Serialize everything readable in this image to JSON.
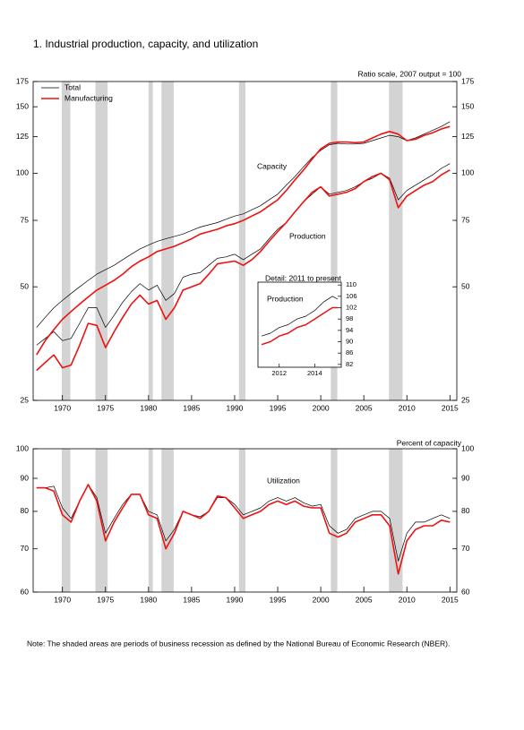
{
  "recessions": [
    [
      1969.92,
      1970.92
    ],
    [
      1973.83,
      1975.25
    ],
    [
      1980.0,
      1980.5
    ],
    [
      1981.5,
      1982.92
    ],
    [
      1990.5,
      1991.25
    ],
    [
      2001.17,
      2001.92
    ],
    [
      2007.92,
      2009.5
    ]
  ],
  "note": "Note: The shaded areas are periods of business recession as defined by the National Bureau of Economic Research (NBER).",
  "chart_data": [
    {
      "type": "line",
      "title": "1.  Industrial production, capacity, and utilization",
      "subtitle": "Ratio scale, 2007 output = 100",
      "log_scale": true,
      "legend": "upper left",
      "annotations": {
        "capacity": "Capacity",
        "production": "Production"
      },
      "xlim": [
        1966.6,
        2015.8
      ],
      "xticks": [
        1970,
        1975,
        1980,
        1985,
        1990,
        1995,
        2000,
        2005,
        2010,
        2015
      ],
      "ylim": [
        25,
        175
      ],
      "yticks": [
        25,
        50,
        75,
        100,
        125,
        150,
        175
      ],
      "x": [
        1967,
        1968,
        1969,
        1970,
        1971,
        1972,
        1973,
        1974,
        1975,
        1976,
        1977,
        1978,
        1979,
        1980,
        1981,
        1982,
        1983,
        1984,
        1985,
        1986,
        1987,
        1988,
        1989,
        1990,
        1991,
        1992,
        1993,
        1994,
        1995,
        1996,
        1997,
        1998,
        1999,
        2000,
        2001,
        2002,
        2003,
        2004,
        2005,
        2006,
        2007,
        2008,
        2009,
        2010,
        2011,
        2012,
        2013,
        2014,
        2015
      ],
      "series": [
        {
          "name": "Total",
          "color": "#000000",
          "capacity": [
            39,
            41.5,
            44,
            46,
            48,
            50,
            52,
            54,
            55.5,
            57,
            59,
            61,
            63,
            64.5,
            66,
            67,
            68,
            69,
            70.5,
            72,
            73,
            74,
            75.5,
            77,
            78,
            80,
            82,
            85,
            88,
            93,
            98,
            104,
            110,
            115,
            119,
            120,
            119.5,
            119.5,
            120,
            122,
            124,
            126,
            125,
            122,
            124,
            127,
            130,
            133,
            137
          ],
          "production": [
            35,
            36.5,
            38,
            36,
            36.5,
            40,
            44,
            44,
            39,
            42,
            45.5,
            48.5,
            51,
            49,
            50.5,
            46,
            48,
            53,
            54,
            54.5,
            57,
            59.5,
            60,
            61,
            59,
            61,
            63,
            67,
            71,
            74,
            79,
            84,
            88,
            92,
            88,
            89,
            90,
            92,
            95,
            97,
            100,
            97,
            85,
            90,
            93,
            96,
            99,
            103,
            106
          ]
        },
        {
          "name": "Manufacturing",
          "color": "#ee1111",
          "capacity": [
            33,
            36,
            38.5,
            41,
            43,
            45,
            47,
            49,
            50.5,
            52,
            54,
            56.5,
            58.5,
            60,
            62,
            63,
            64,
            65.5,
            67,
            69,
            70,
            71,
            72.5,
            73.5,
            75,
            77,
            79,
            82,
            85,
            90,
            96,
            102,
            109,
            116,
            120,
            121,
            121,
            120.5,
            121,
            124,
            127,
            129,
            127,
            122,
            123,
            126,
            128,
            131,
            133
          ],
          "production": [
            30,
            31.5,
            33,
            30.5,
            31,
            35,
            40,
            39.5,
            34.5,
            38,
            41.5,
            45,
            47.5,
            45,
            46,
            41,
            44,
            49,
            50,
            51,
            54,
            57.5,
            58,
            58.5,
            57,
            59,
            62,
            66,
            70,
            74,
            79,
            84,
            89,
            92,
            87,
            88,
            89,
            91,
            95,
            98,
            100,
            96,
            81,
            87,
            90,
            93,
            95,
            99,
            102
          ]
        }
      ],
      "inset": {
        "title": "Detail: 2011 to present",
        "label": "Production",
        "xlim": [
          2010.8,
          2015.5
        ],
        "xticks": [
          2012,
          2014
        ],
        "ylim": [
          81,
          111
        ],
        "yticks": [
          82,
          86,
          90,
          94,
          98,
          102,
          106,
          110
        ],
        "x": [
          2011,
          2011.5,
          2012,
          2012.5,
          2013,
          2013.5,
          2014,
          2014.5,
          2015,
          2015.3
        ],
        "series": [
          {
            "color": "#000000",
            "values": [
              92,
              93,
              95,
              96,
              98,
              99,
              101,
              104,
              106,
              105
            ]
          },
          {
            "color": "#ee1111",
            "values": [
              89,
              90,
              92,
              93,
              95,
              96,
              98,
              100,
              102,
              102
            ]
          }
        ]
      }
    },
    {
      "type": "line",
      "subtitle": "Percent of capacity",
      "log_scale": true,
      "annotations": {
        "utilization": "Utilization"
      },
      "xlim": [
        1966.6,
        2015.8
      ],
      "xticks": [
        1970,
        1975,
        1980,
        1985,
        1990,
        1995,
        2000,
        2005,
        2010,
        2015
      ],
      "ylim": [
        60,
        100
      ],
      "yticks": [
        60,
        70,
        80,
        90,
        100
      ],
      "x": [
        1967,
        1968,
        1969,
        1970,
        1971,
        1972,
        1973,
        1974,
        1975,
        1976,
        1977,
        1978,
        1979,
        1980,
        1981,
        1982,
        1983,
        1984,
        1985,
        1986,
        1987,
        1988,
        1989,
        1990,
        1991,
        1992,
        1993,
        1994,
        1995,
        1996,
        1997,
        1998,
        1999,
        2000,
        2001,
        2002,
        2003,
        2004,
        2005,
        2006,
        2007,
        2008,
        2009,
        2010,
        2011,
        2012,
        2013,
        2014,
        2015
      ],
      "series": [
        {
          "color": "#000000",
          "values": [
            87,
            87,
            87.5,
            81,
            78,
            83,
            88,
            84,
            74,
            78,
            82,
            85,
            85,
            80,
            79,
            72,
            75,
            80,
            79,
            78.5,
            80,
            84,
            84,
            82,
            79,
            80,
            81,
            83,
            84,
            83,
            84,
            82.5,
            81.5,
            82,
            76,
            74,
            75,
            78,
            79,
            80,
            80,
            78,
            67,
            74,
            77,
            77,
            78,
            79,
            78
          ]
        },
        {
          "color": "#ee1111",
          "values": [
            87,
            87,
            86,
            79,
            77,
            83,
            88,
            83,
            72,
            77,
            81,
            85,
            85,
            79,
            78,
            70,
            74,
            80,
            79,
            78,
            80,
            84.5,
            84,
            81,
            78,
            79,
            80,
            82,
            83,
            82,
            83,
            81.5,
            81,
            81,
            74,
            73,
            74,
            77,
            78,
            79,
            79,
            76,
            64,
            72,
            75,
            76,
            76,
            77.5,
            77
          ]
        }
      ]
    }
  ]
}
